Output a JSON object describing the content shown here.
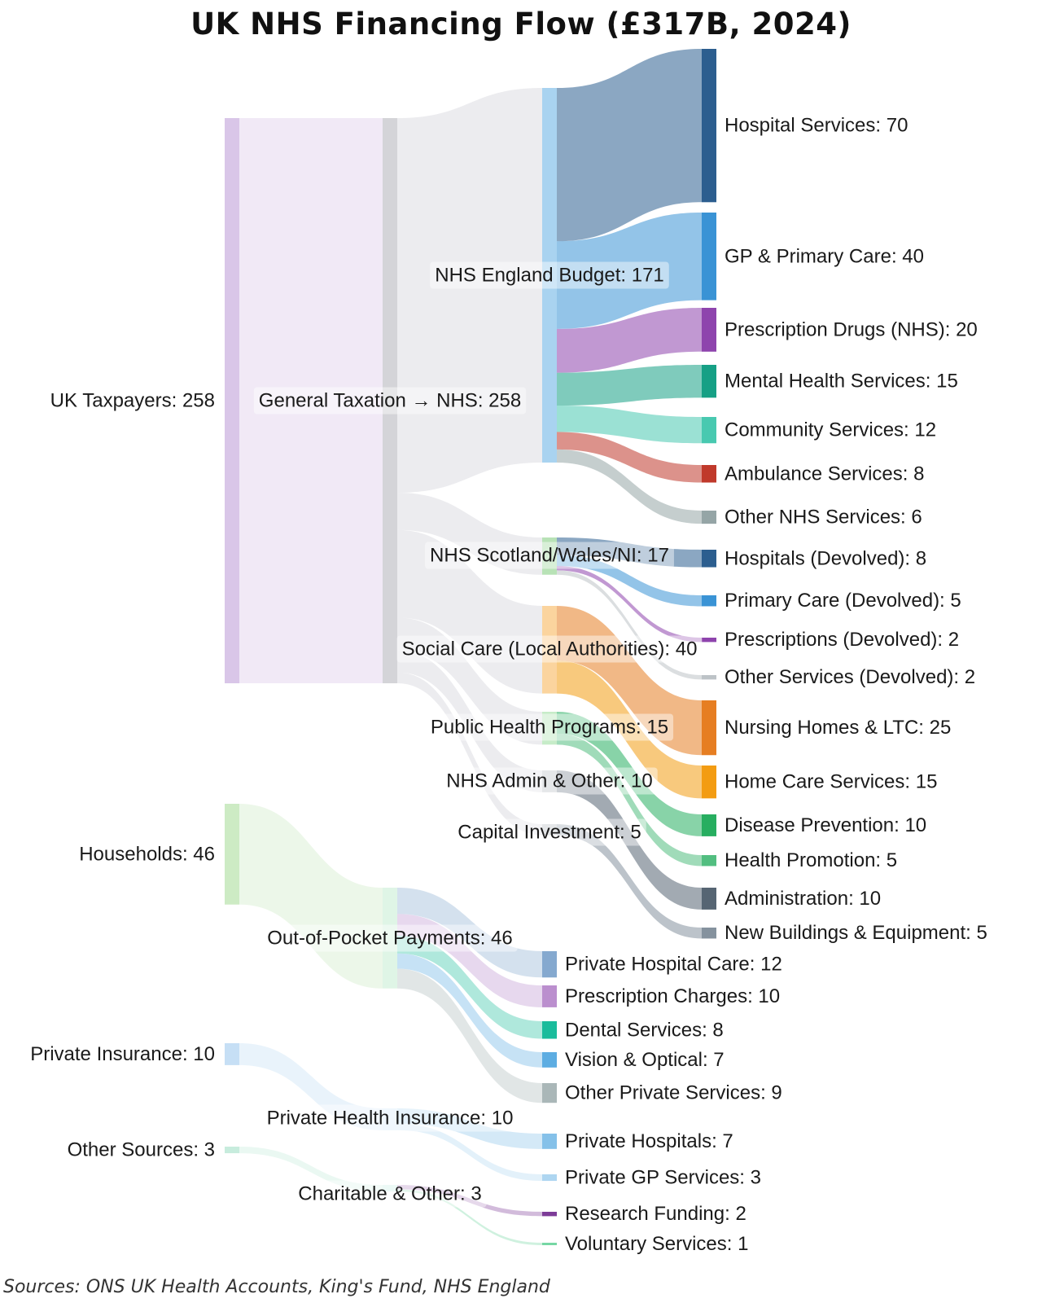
{
  "chart_data": {
    "type": "sankey",
    "title": "UK NHS Financing Flow (£317B, 2024)",
    "source_note": "Sources: ONS UK Health Accounts, King's Fund, NHS England",
    "unit": "£B",
    "nodes": [
      {
        "id": "taxpayers",
        "label": "UK Taxpayers: 258",
        "value": 258,
        "color": "#d9c6e8"
      },
      {
        "id": "households",
        "label": "Households: 46",
        "value": 46,
        "color": "#cdebc4"
      },
      {
        "id": "insurance",
        "label": "Private Insurance: 10",
        "value": 10,
        "color": "#c6dff5"
      },
      {
        "id": "othersrc",
        "label": "Other Sources: 3",
        "value": 3,
        "color": "#c7ecdd"
      },
      {
        "id": "gentax",
        "label": "General Taxation → NHS: 258",
        "value": 258,
        "color": "#d4d4d8"
      },
      {
        "id": "oop",
        "label": "Out-of-Pocket Payments: 46",
        "value": 46,
        "color": "#dff5e6"
      },
      {
        "id": "phi",
        "label": "Private Health Insurance: 10",
        "value": 10,
        "color": "#e3f0fb"
      },
      {
        "id": "charity",
        "label": "Charitable & Other: 3",
        "value": 3,
        "color": "#ddf5ef"
      },
      {
        "id": "nhse",
        "label": "NHS England Budget: 171",
        "value": 171,
        "color": "#a9d3f0"
      },
      {
        "id": "swn",
        "label": "NHS Scotland/Wales/NI: 17",
        "value": 17,
        "color": "#b8e2b6"
      },
      {
        "id": "social",
        "label": "Social Care (Local Authorities): 40",
        "value": 40,
        "color": "#fbd49e"
      },
      {
        "id": "pubhealth",
        "label": "Public Health Programs: 15",
        "value": 15,
        "color": "#c6ecc8"
      },
      {
        "id": "admin",
        "label": "NHS Admin & Other: 10",
        "value": 10,
        "color": "#d0d3d8"
      },
      {
        "id": "capital",
        "label": "Capital Investment: 5",
        "value": 5,
        "color": "#d0d3d8"
      },
      {
        "id": "hosp",
        "label": "Hospital Services: 70",
        "value": 70,
        "color": "#2c5e8f"
      },
      {
        "id": "gp",
        "label": "GP & Primary Care: 40",
        "value": 40,
        "color": "#3a93d5"
      },
      {
        "id": "rx",
        "label": "Prescription Drugs (NHS): 20",
        "value": 20,
        "color": "#8e44ad"
      },
      {
        "id": "mental",
        "label": "Mental Health Services: 15",
        "value": 15,
        "color": "#16a085"
      },
      {
        "id": "community",
        "label": "Community Services: 12",
        "value": 12,
        "color": "#48c9b0"
      },
      {
        "id": "ambulance",
        "label": "Ambulance Services: 8",
        "value": 8,
        "color": "#c0392b"
      },
      {
        "id": "othernhs",
        "label": "Other NHS Services: 6",
        "value": 6,
        "color": "#95a5a6"
      },
      {
        "id": "hospdev",
        "label": "Hospitals (Devolved): 8",
        "value": 8,
        "color": "#2c5e8f"
      },
      {
        "id": "pcdev",
        "label": "Primary Care (Devolved): 5",
        "value": 5,
        "color": "#3a93d5"
      },
      {
        "id": "rxdev",
        "label": "Prescriptions (Devolved): 2",
        "value": 2,
        "color": "#8e44ad"
      },
      {
        "id": "othdev",
        "label": "Other Services (Devolved): 2",
        "value": 2,
        "color": "#bdc3c7"
      },
      {
        "id": "nursing",
        "label": "Nursing Homes & LTC: 25",
        "value": 25,
        "color": "#e67e22"
      },
      {
        "id": "homecare",
        "label": "Home Care Services: 15",
        "value": 15,
        "color": "#f39c12"
      },
      {
        "id": "disease",
        "label": "Disease Prevention: 10",
        "value": 10,
        "color": "#27ae60"
      },
      {
        "id": "promo",
        "label": "Health Promotion: 5",
        "value": 5,
        "color": "#52be80"
      },
      {
        "id": "administration",
        "label": "Administration: 10",
        "value": 10,
        "color": "#566573"
      },
      {
        "id": "buildings",
        "label": "New Buildings & Equipment: 5",
        "value": 5,
        "color": "#85929e"
      },
      {
        "id": "privhosp",
        "label": "Private Hospital Care: 12",
        "value": 12,
        "color": "#85a9cf"
      },
      {
        "id": "rxcharges",
        "label": "Prescription Charges: 10",
        "value": 10,
        "color": "#bb8fce"
      },
      {
        "id": "dental",
        "label": "Dental Services: 8",
        "value": 8,
        "color": "#1abc9c"
      },
      {
        "id": "vision",
        "label": "Vision & Optical: 7",
        "value": 7,
        "color": "#5dade2"
      },
      {
        "id": "otherpriv",
        "label": "Other Private Services: 9",
        "value": 9,
        "color": "#aab7b8"
      },
      {
        "id": "privhospitals",
        "label": "Private Hospitals: 7",
        "value": 7,
        "color": "#85c1e9"
      },
      {
        "id": "privgp",
        "label": "Private GP Services: 3",
        "value": 3,
        "color": "#aed6f1"
      },
      {
        "id": "research",
        "label": "Research Funding: 2",
        "value": 2,
        "color": "#7d3c98"
      },
      {
        "id": "voluntary",
        "label": "Voluntary Services: 1",
        "value": 1,
        "color": "#76d7a4"
      }
    ],
    "links": [
      {
        "source": "taxpayers",
        "target": "gentax",
        "value": 258
      },
      {
        "source": "households",
        "target": "oop",
        "value": 46
      },
      {
        "source": "insurance",
        "target": "phi",
        "value": 10
      },
      {
        "source": "othersrc",
        "target": "charity",
        "value": 3
      },
      {
        "source": "gentax",
        "target": "nhse",
        "value": 171
      },
      {
        "source": "gentax",
        "target": "swn",
        "value": 17
      },
      {
        "source": "gentax",
        "target": "social",
        "value": 40
      },
      {
        "source": "gentax",
        "target": "pubhealth",
        "value": 15
      },
      {
        "source": "gentax",
        "target": "admin",
        "value": 10
      },
      {
        "source": "gentax",
        "target": "capital",
        "value": 5
      },
      {
        "source": "nhse",
        "target": "hosp",
        "value": 70
      },
      {
        "source": "nhse",
        "target": "gp",
        "value": 40
      },
      {
        "source": "nhse",
        "target": "rx",
        "value": 20
      },
      {
        "source": "nhse",
        "target": "mental",
        "value": 15
      },
      {
        "source": "nhse",
        "target": "community",
        "value": 12
      },
      {
        "source": "nhse",
        "target": "ambulance",
        "value": 8
      },
      {
        "source": "nhse",
        "target": "othernhs",
        "value": 6
      },
      {
        "source": "swn",
        "target": "hospdev",
        "value": 8
      },
      {
        "source": "swn",
        "target": "pcdev",
        "value": 5
      },
      {
        "source": "swn",
        "target": "rxdev",
        "value": 2
      },
      {
        "source": "swn",
        "target": "othdev",
        "value": 2
      },
      {
        "source": "social",
        "target": "nursing",
        "value": 25
      },
      {
        "source": "social",
        "target": "homecare",
        "value": 15
      },
      {
        "source": "pubhealth",
        "target": "disease",
        "value": 10
      },
      {
        "source": "pubhealth",
        "target": "promo",
        "value": 5
      },
      {
        "source": "admin",
        "target": "administration",
        "value": 10
      },
      {
        "source": "capital",
        "target": "buildings",
        "value": 5
      },
      {
        "source": "oop",
        "target": "privhosp",
        "value": 12
      },
      {
        "source": "oop",
        "target": "rxcharges",
        "value": 10
      },
      {
        "source": "oop",
        "target": "dental",
        "value": 8
      },
      {
        "source": "oop",
        "target": "vision",
        "value": 7
      },
      {
        "source": "oop",
        "target": "otherpriv",
        "value": 9
      },
      {
        "source": "phi",
        "target": "privhospitals",
        "value": 7
      },
      {
        "source": "phi",
        "target": "privgp",
        "value": 3
      },
      {
        "source": "charity",
        "target": "research",
        "value": 2
      },
      {
        "source": "charity",
        "target": "voluntary",
        "value": 1
      }
    ]
  }
}
